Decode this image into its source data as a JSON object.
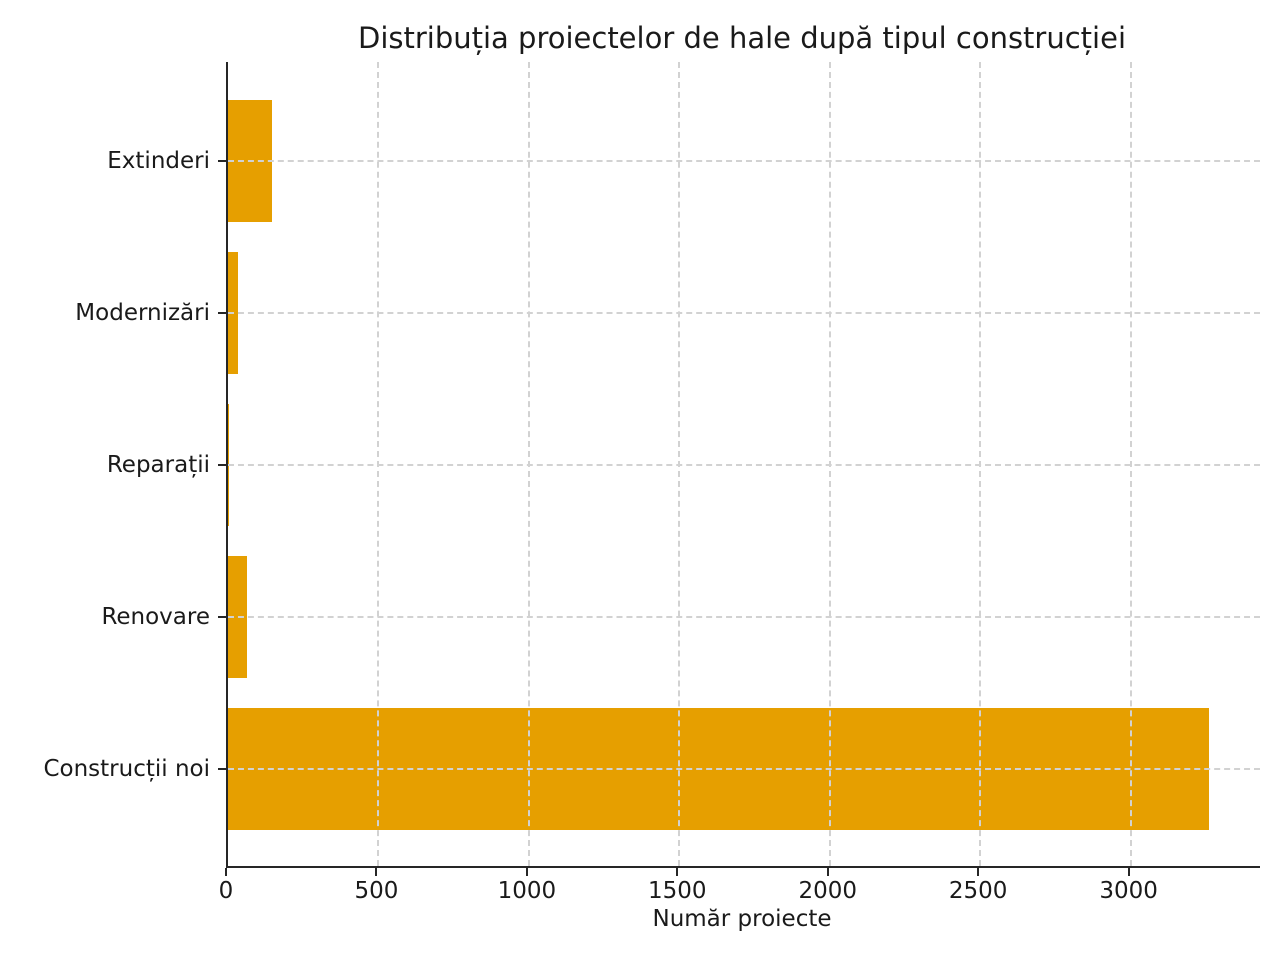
{
  "chart_data": {
    "type": "bar",
    "orientation": "horizontal",
    "title": "Distribuția proiectelor de hale după tipul construcției",
    "xlabel": "Număr proiecte",
    "ylabel": "",
    "categories": [
      "Extinderi",
      "Modernizări",
      "Reparații",
      "Renovare",
      "Construcții noi"
    ],
    "values": [
      145,
      33,
      2,
      63,
      3260
    ],
    "xticks": [
      0,
      500,
      1000,
      1500,
      2000,
      2500,
      3000
    ],
    "xlim": [
      0,
      3430
    ],
    "bar_color": "#E69F00",
    "grid": true,
    "grid_style": "dashed",
    "grid_color": "#d2d2d2",
    "legend": "none",
    "background": "#ffffff"
  }
}
